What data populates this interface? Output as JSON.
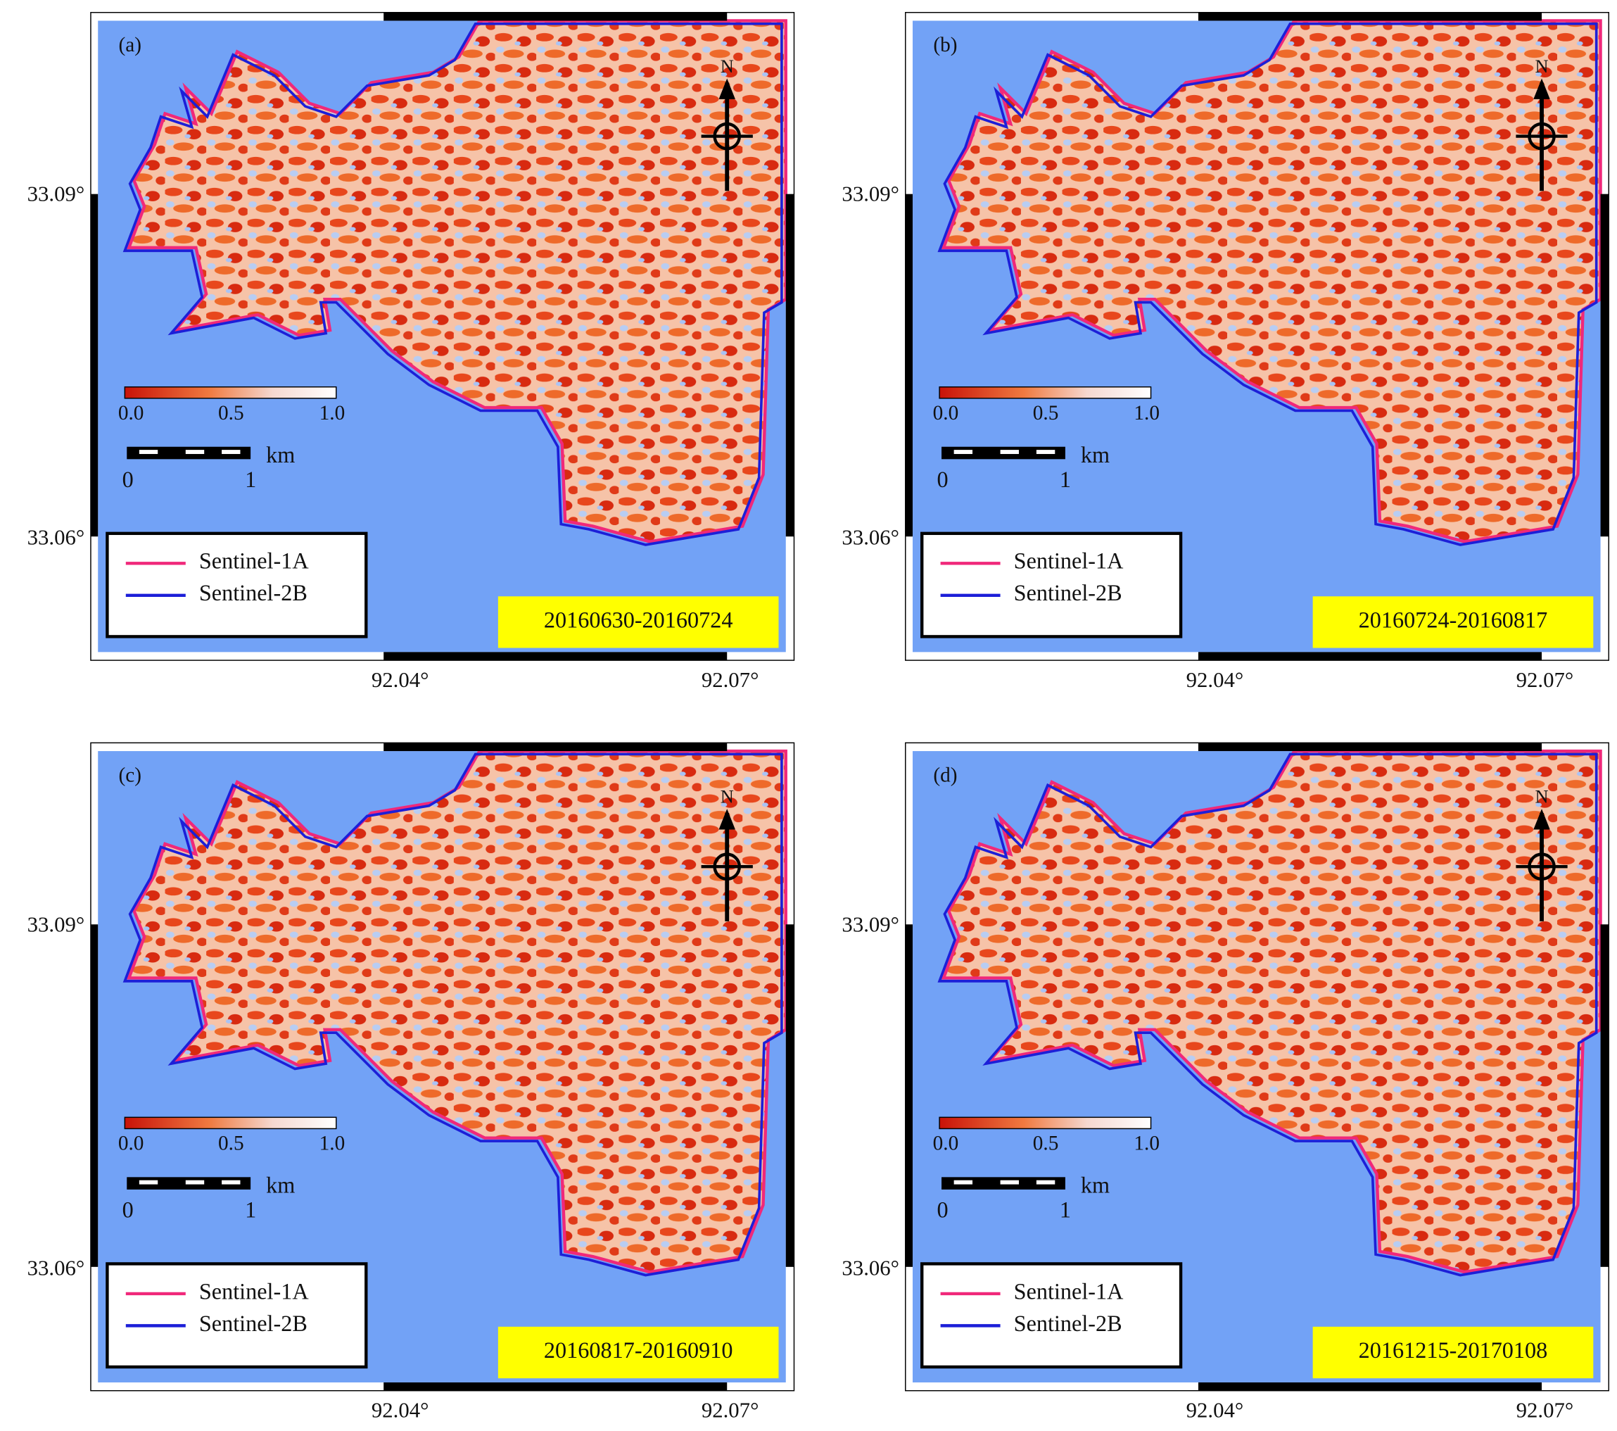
{
  "panels": [
    {
      "label": "(a)",
      "date": "20160630-20160724",
      "north": "N",
      "legend": [
        {
          "name": "Sentinel-1A",
          "color": "#f0287a"
        },
        {
          "name": "Sentinel-2B",
          "color": "#1c1fd8"
        }
      ],
      "colorbar_ticks": [
        "0.0",
        "0.5",
        "1.0"
      ],
      "scalebar": {
        "labels": [
          "0",
          "1"
        ],
        "unit": "km"
      },
      "lat_labels": [
        "33.09°",
        "33.06°"
      ],
      "lon_labels": [
        "92.04°",
        "92.07°"
      ]
    },
    {
      "label": "(b)",
      "date": "20160724-20160817",
      "north": "N",
      "legend": [
        {
          "name": "Sentinel-1A",
          "color": "#f0287a"
        },
        {
          "name": "Sentinel-2B",
          "color": "#1c1fd8"
        }
      ],
      "colorbar_ticks": [
        "0.0",
        "0.5",
        "1.0"
      ],
      "scalebar": {
        "labels": [
          "0",
          "1"
        ],
        "unit": "km"
      },
      "lat_labels": [
        "33.09°",
        "33.06°"
      ],
      "lon_labels": [
        "92.04°",
        "92.07°"
      ]
    },
    {
      "label": "(c)",
      "date": "20160817-20160910",
      "north": "N",
      "legend": [
        {
          "name": "Sentinel-1A",
          "color": "#f0287a"
        },
        {
          "name": "Sentinel-2B",
          "color": "#1c1fd8"
        }
      ],
      "colorbar_ticks": [
        "0.0",
        "0.5",
        "1.0"
      ],
      "scalebar": {
        "labels": [
          "0",
          "1"
        ],
        "unit": "km"
      },
      "lat_labels": [
        "33.09°",
        "33.06°"
      ],
      "lon_labels": [
        "92.04°",
        "92.07°"
      ]
    },
    {
      "label": "(d)",
      "date": "20161215-20170108",
      "north": "N",
      "legend": [
        {
          "name": "Sentinel-1A",
          "color": "#f0287a"
        },
        {
          "name": "Sentinel-2B",
          "color": "#1c1fd8"
        }
      ],
      "colorbar_ticks": [
        "0.0",
        "0.5",
        "1.0"
      ],
      "scalebar": {
        "labels": [
          "0",
          "1"
        ],
        "unit": "km"
      },
      "lat_labels": [
        "33.09°",
        "33.06°"
      ],
      "lon_labels": [
        "92.04°",
        "92.07°"
      ]
    }
  ]
}
